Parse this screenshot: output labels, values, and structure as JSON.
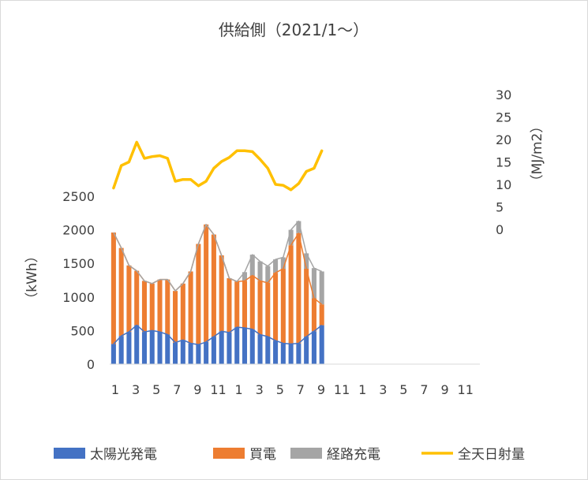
{
  "chart_data": {
    "type": "bar",
    "title": "供給側（2021/1〜）",
    "ylabel": "（kWh）",
    "y2label": "（MJ/m2）",
    "ylim": [
      0,
      2500
    ],
    "y2lim": [
      0,
      30
    ],
    "y_ticks": [
      0,
      500,
      1000,
      1500,
      2000,
      2500
    ],
    "y2_ticks": [
      0,
      5,
      10,
      15,
      20,
      25,
      30
    ],
    "x_tick_labels": [
      "1",
      "3",
      "5",
      "7",
      "9",
      "11",
      "1",
      "3",
      "5",
      "7",
      "9",
      "11",
      "1",
      "3",
      "5",
      "7",
      "9",
      "11"
    ],
    "grid": false,
    "legend_position": "bottom",
    "x": [
      1,
      2,
      3,
      4,
      5,
      6,
      7,
      8,
      9,
      10,
      11,
      12,
      13,
      14,
      15,
      16,
      17,
      18,
      19,
      20,
      21,
      22,
      23,
      24,
      25,
      26,
      27,
      28,
      29,
      30,
      31,
      32,
      33,
      34,
      35,
      36,
      37,
      38,
      39,
      40,
      41,
      42,
      43,
      44,
      45,
      46,
      47,
      48
    ],
    "series": [
      {
        "name": "太陽光発電",
        "color": "#4472C4",
        "kind": "bar",
        "axis": "left",
        "values": [
          300,
          420,
          480,
          580,
          480,
          500,
          480,
          440,
          320,
          360,
          310,
          290,
          330,
          410,
          490,
          470,
          550,
          540,
          520,
          440,
          410,
          350,
          310,
          300,
          310,
          410,
          490,
          580,
          null,
          null,
          null,
          null,
          null,
          null,
          null,
          null,
          null,
          null,
          null,
          null,
          null,
          null,
          null,
          null,
          null,
          null,
          null,
          null
        ]
      },
      {
        "name": "買電",
        "color": "#ED7D31",
        "kind": "bar",
        "axis": "left",
        "values": [
          1660,
          1310,
          990,
          810,
          760,
          700,
          780,
          820,
          770,
          840,
          1070,
          1500,
          1750,
          1520,
          1130,
          810,
          680,
          700,
          800,
          800,
          800,
          1010,
          1110,
          1470,
          1640,
          1010,
          490,
          310,
          null,
          null,
          null,
          null,
          null,
          null,
          null,
          null,
          null,
          null,
          null,
          null,
          null,
          null,
          null,
          null,
          null,
          null,
          null,
          null
        ]
      },
      {
        "name": "経路充電",
        "color": "#A5A5A5",
        "kind": "bar",
        "axis": "left",
        "values": [
          0,
          0,
          0,
          0,
          0,
          0,
          0,
          0,
          0,
          0,
          0,
          0,
          0,
          0,
          0,
          0,
          0,
          130,
          310,
          290,
          250,
          200,
          170,
          230,
          180,
          230,
          450,
          490,
          null,
          null,
          null,
          null,
          null,
          null,
          null,
          null,
          null,
          null,
          null,
          null,
          null,
          null,
          null,
          null,
          null,
          null,
          null,
          null
        ]
      },
      {
        "name": "全天日射量",
        "color": "#FFC000",
        "kind": "line",
        "axis": "right",
        "values": [
          9.2,
          14.2,
          15,
          19.4,
          15.8,
          16.2,
          16.4,
          15.8,
          10.7,
          11.1,
          11.1,
          9.7,
          10.7,
          13.6,
          15.1,
          16,
          17.5,
          17.5,
          17.3,
          15.6,
          13.6,
          10,
          9.8,
          8.8,
          10.2,
          12.9,
          13.6,
          17.5,
          null,
          null,
          null,
          null,
          null,
          null,
          null,
          null,
          null,
          null,
          null,
          null,
          null,
          null,
          null,
          null,
          null,
          null,
          null,
          null
        ]
      }
    ]
  }
}
